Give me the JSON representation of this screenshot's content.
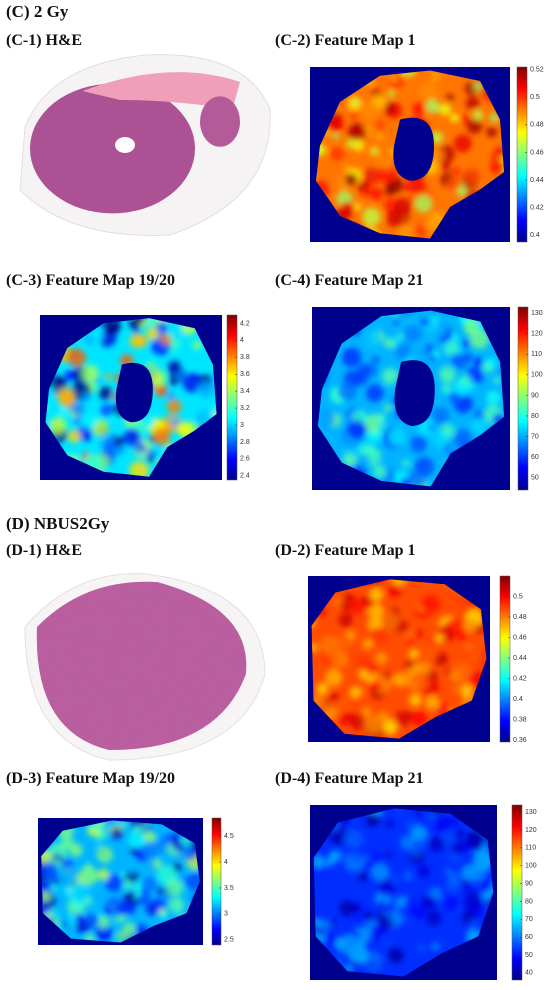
{
  "sections": [
    {
      "title": "(C) 2 Gy",
      "panels": [
        {
          "label": "(C-1) H&E"
        },
        {
          "label": "(C-2) Feature Map 1",
          "clim": [
            0.395,
            0.522
          ],
          "ticks": [
            0.52,
            0.5,
            0.48,
            0.46,
            0.44,
            0.42,
            0.4
          ]
        },
        {
          "label": "(C-3) Feature Map 19/20",
          "clim": [
            2.35,
            4.3
          ],
          "ticks": [
            4.2,
            4,
            3.8,
            3.6,
            3.4,
            3.2,
            3,
            2.8,
            2.6,
            2.4
          ]
        },
        {
          "label": "(C-4) Feature Map 21",
          "clim": [
            44,
            133
          ],
          "ticks": [
            130,
            120,
            110,
            100,
            90,
            80,
            70,
            60,
            50
          ]
        }
      ]
    },
    {
      "title": "(D) NBUS2Gy",
      "panels": [
        {
          "label": "(D-1) H&E"
        },
        {
          "label": "(D-2) Feature Map 1",
          "clim": [
            0.358,
            0.52
          ],
          "ticks": [
            0.5,
            0.48,
            0.46,
            0.44,
            0.42,
            0.4,
            0.38,
            0.36
          ]
        },
        {
          "label": "(D-3) Feature Map 19/20",
          "clim": [
            2.4,
            4.85
          ],
          "ticks": [
            4.5,
            4,
            3.5,
            3,
            2.5
          ]
        },
        {
          "label": "(D-4) Feature Map 21",
          "clim": [
            36,
            134
          ],
          "ticks": [
            130,
            120,
            110,
            100,
            90,
            80,
            70,
            60,
            50,
            40
          ]
        }
      ]
    }
  ]
}
